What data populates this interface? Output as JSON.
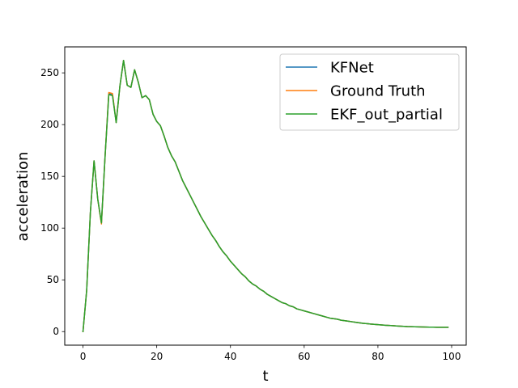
{
  "chart_data": {
    "type": "line",
    "title": "",
    "xlabel": "t",
    "ylabel": "acceleration",
    "xlim": [
      -4.95,
      103.95
    ],
    "ylim": [
      -13.1,
      275.1
    ],
    "xticks": [
      0,
      20,
      40,
      60,
      80,
      100
    ],
    "yticks": [
      0,
      50,
      100,
      150,
      200,
      250
    ],
    "grid": false,
    "legend_position": "top-right",
    "x": [
      0,
      1,
      2,
      3,
      4,
      5,
      6,
      7,
      8,
      9,
      10,
      11,
      12,
      13,
      14,
      15,
      16,
      17,
      18,
      19,
      20,
      21,
      22,
      23,
      24,
      25,
      26,
      27,
      28,
      29,
      30,
      31,
      32,
      33,
      34,
      35,
      36,
      37,
      38,
      39,
      40,
      41,
      42,
      43,
      44,
      45,
      46,
      47,
      48,
      49,
      50,
      51,
      52,
      53,
      54,
      55,
      56,
      57,
      58,
      59,
      60,
      61,
      62,
      63,
      64,
      65,
      66,
      67,
      68,
      69,
      70,
      71,
      72,
      73,
      74,
      75,
      76,
      77,
      78,
      79,
      80,
      81,
      82,
      83,
      84,
      85,
      86,
      87,
      88,
      89,
      90,
      91,
      92,
      93,
      94,
      95,
      96,
      97,
      98,
      99
    ],
    "series": [
      {
        "name": "KFNet",
        "color": "#1f77b4",
        "values": [
          0,
          40,
          115,
          165,
          128,
          105,
          170,
          230,
          229,
          202,
          237,
          262,
          238,
          236,
          253,
          241,
          226,
          228,
          224,
          210,
          203,
          199,
          189,
          178,
          170,
          164,
          155,
          146,
          139,
          132,
          125,
          118,
          111,
          105,
          99,
          93,
          88,
          82,
          77,
          73,
          68,
          64,
          60,
          56,
          53,
          49,
          46,
          44,
          41,
          39,
          36,
          34,
          32,
          30,
          28,
          27,
          25,
          24,
          22,
          21,
          20,
          19,
          18,
          17,
          16,
          15,
          14,
          13,
          12.5,
          12,
          11,
          10.5,
          10,
          9.5,
          9,
          8.5,
          8,
          7.7,
          7.3,
          7,
          6.7,
          6.4,
          6.1,
          5.9,
          5.7,
          5.5,
          5.3,
          5.1,
          4.9,
          4.8,
          4.7,
          4.6,
          4.5,
          4.4,
          4.3,
          4.3,
          4.2,
          4.2,
          4.2,
          4.2
        ]
      },
      {
        "name": "Ground Truth",
        "color": "#ff7f0e",
        "values": [
          0,
          40,
          115,
          165,
          128,
          104,
          170,
          231,
          230,
          202,
          237,
          262,
          238,
          236,
          253,
          241,
          226,
          228,
          224,
          210,
          203,
          199,
          189,
          178,
          170,
          164,
          155,
          146,
          139,
          132,
          125,
          118,
          111,
          105,
          99,
          93,
          88,
          82,
          77,
          73,
          68,
          64,
          60,
          56,
          53,
          49,
          46,
          44,
          41,
          39,
          36,
          34,
          32,
          30,
          28,
          27,
          25,
          24,
          22,
          21,
          20,
          19,
          18,
          17,
          16,
          15,
          14,
          13,
          12.5,
          12,
          11,
          10.5,
          10,
          9.5,
          9,
          8.5,
          8,
          7.7,
          7.3,
          7,
          6.7,
          6.4,
          6.1,
          5.9,
          5.7,
          5.5,
          5.3,
          5.1,
          4.9,
          4.8,
          4.7,
          4.6,
          4.5,
          4.4,
          4.3,
          4.3,
          4.2,
          4.2,
          4.2,
          4.2
        ]
      },
      {
        "name": "EKF_out_partial",
        "color": "#2ca02c",
        "values": [
          0,
          40,
          115,
          165,
          128,
          105,
          170,
          229,
          228,
          202,
          237,
          262,
          238,
          236,
          253,
          241,
          226,
          228,
          224,
          210,
          203,
          199,
          189,
          178,
          170,
          164,
          155,
          146,
          139,
          132,
          125,
          118,
          111,
          105,
          99,
          93,
          88,
          82,
          77,
          73,
          68,
          64,
          60,
          56,
          53,
          49,
          46,
          44,
          41,
          39,
          36,
          34,
          32,
          30,
          28,
          27,
          25,
          24,
          22,
          21,
          20,
          19,
          18,
          17,
          16,
          15,
          14,
          13,
          12.5,
          12,
          11,
          10.5,
          10,
          9.5,
          9,
          8.5,
          8,
          7.7,
          7.3,
          7,
          6.7,
          6.4,
          6.1,
          5.9,
          5.7,
          5.5,
          5.3,
          5.1,
          4.9,
          4.8,
          4.7,
          4.6,
          4.5,
          4.4,
          4.3,
          4.3,
          4.2,
          4.2,
          4.2,
          4.2
        ]
      }
    ]
  }
}
